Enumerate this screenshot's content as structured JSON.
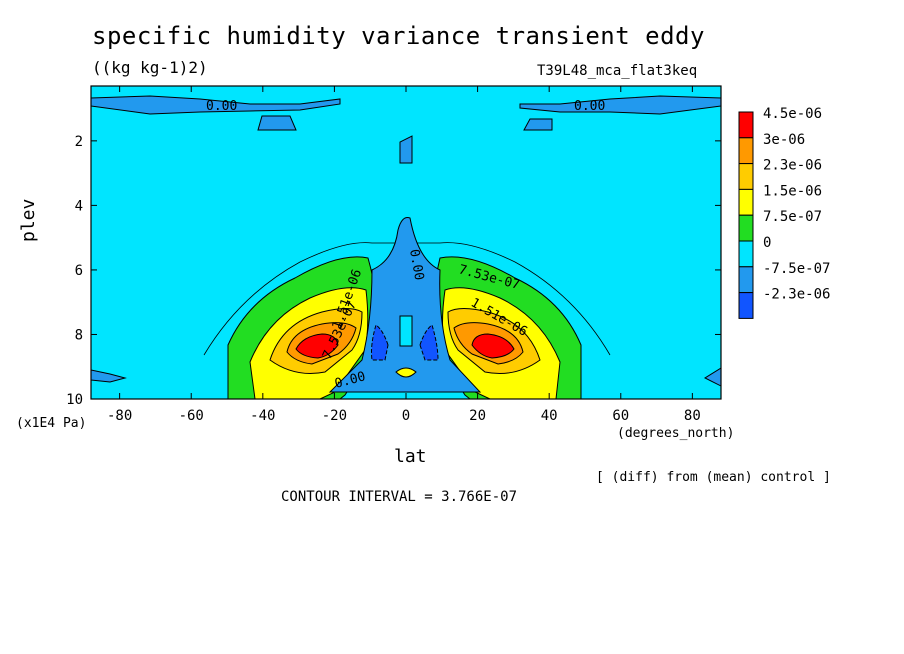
{
  "chart_data": {
    "type": "contour",
    "title": "specific humidity variance transient eddy",
    "units": "((kg kg-1)2)",
    "run_id": "T39L48_mca_flat3keq",
    "xlabel": "lat",
    "xunits": "(degrees_north)",
    "ylabel": "plev",
    "yunits": "(x1E4 Pa)",
    "x_ticks": [
      "-80",
      "-60",
      "-40",
      "-20",
      "0",
      "20",
      "40",
      "60",
      "80"
    ],
    "y_ticks": [
      "2",
      "4",
      "6",
      "8",
      "10"
    ],
    "xlim": [
      -88,
      88
    ],
    "ylim": [
      10,
      0.3
    ],
    "note": "[ (diff) from (mean) control ]",
    "contour_interval": "CONTOUR INTERVAL = 3.766E-07",
    "colorbar": [
      {
        "label": "4.5e-06",
        "color": "#ff0000"
      },
      {
        "label": "3e-06",
        "color": "#ff9900"
      },
      {
        "label": "2.3e-06",
        "color": "#ffcc00"
      },
      {
        "label": "1.5e-06",
        "color": "#ffff00"
      },
      {
        "label": "7.5e-07",
        "color": "#22dd22"
      },
      {
        "label": "0",
        "color": "#00e5ff"
      },
      {
        "label": "-7.5e-07",
        "color": "#2299ee"
      },
      {
        "label": "-2.3e-06",
        "color": "#1155ff"
      }
    ],
    "contour_labels": [
      "0.00",
      "0.00",
      "7.53e-07",
      "1.51e-06",
      "0.00",
      "0.00",
      "1.51e-06",
      "7.53e-07"
    ],
    "peaks": [
      {
        "lat": -25,
        "plev": 8.4,
        "level": "4.5e-06"
      },
      {
        "lat": 25,
        "plev": 8.4,
        "level": "4.5e-06"
      }
    ]
  }
}
